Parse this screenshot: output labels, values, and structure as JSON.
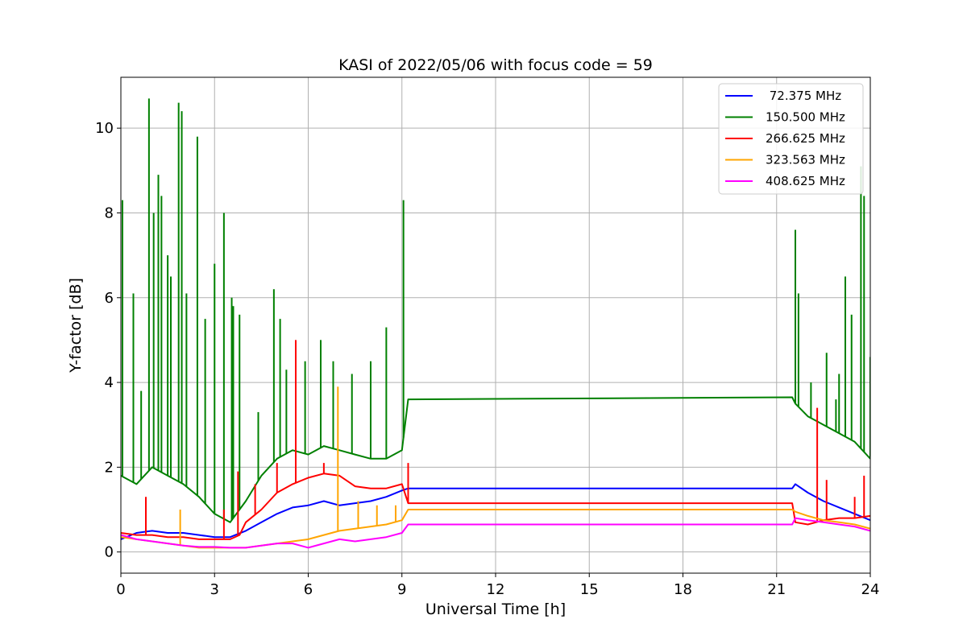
{
  "chart_data": {
    "type": "line",
    "title": "KASI of 2022/05/06 with focus code = 59",
    "xlabel": "Universal Time [h]",
    "ylabel": "Y-factor [dB]",
    "xlim": [
      0,
      24
    ],
    "ylim": [
      -0.5,
      11.2
    ],
    "xticks": [
      0,
      3,
      6,
      9,
      12,
      15,
      18,
      21,
      24
    ],
    "yticks": [
      0,
      2,
      4,
      6,
      8,
      10
    ],
    "grid": true,
    "legend_position": "top-right",
    "series": [
      {
        "name": " 72.375 MHz",
        "color": "#0000ff",
        "x": [
          0,
          0.5,
          1,
          1.5,
          2,
          2.5,
          3,
          3.5,
          4,
          4.5,
          5,
          5.5,
          6,
          6.5,
          7,
          7.5,
          8,
          8.5,
          9,
          9.2,
          21.5,
          21.6,
          22,
          22.5,
          23,
          23.5,
          24
        ],
        "y": [
          0.3,
          0.45,
          0.5,
          0.45,
          0.45,
          0.4,
          0.35,
          0.35,
          0.5,
          0.7,
          0.9,
          1.05,
          1.1,
          1.2,
          1.1,
          1.15,
          1.2,
          1.3,
          1.45,
          1.5,
          1.5,
          1.6,
          1.4,
          1.2,
          1.05,
          0.9,
          0.75
        ],
        "spikes": []
      },
      {
        "name": "150.500 MHz",
        "color": "#008000",
        "x": [
          0,
          0.5,
          1,
          1.5,
          2,
          2.5,
          3,
          3.5,
          4,
          4.5,
          5,
          5.5,
          6,
          6.5,
          7,
          7.5,
          8,
          8.5,
          9,
          9.2,
          21.5,
          21.6,
          22,
          22.5,
          23,
          23.5,
          24
        ],
        "y": [
          1.8,
          1.6,
          2.0,
          1.8,
          1.6,
          1.3,
          0.9,
          0.7,
          1.2,
          1.8,
          2.2,
          2.4,
          2.3,
          2.5,
          2.4,
          2.3,
          2.2,
          2.2,
          2.4,
          3.6,
          3.65,
          3.5,
          3.2,
          3.0,
          2.8,
          2.6,
          2.2
        ],
        "spikes": [
          {
            "x": 0.05,
            "y": 8.3
          },
          {
            "x": 0.4,
            "y": 6.1
          },
          {
            "x": 0.65,
            "y": 3.8
          },
          {
            "x": 0.9,
            "y": 10.7
          },
          {
            "x": 1.05,
            "y": 8.0
          },
          {
            "x": 1.2,
            "y": 8.9
          },
          {
            "x": 1.3,
            "y": 8.4
          },
          {
            "x": 1.5,
            "y": 7.0
          },
          {
            "x": 1.6,
            "y": 6.5
          },
          {
            "x": 1.85,
            "y": 10.6
          },
          {
            "x": 1.95,
            "y": 10.4
          },
          {
            "x": 2.1,
            "y": 6.1
          },
          {
            "x": 2.45,
            "y": 9.8
          },
          {
            "x": 2.7,
            "y": 5.5
          },
          {
            "x": 3.0,
            "y": 6.8
          },
          {
            "x": 3.3,
            "y": 8.0
          },
          {
            "x": 3.55,
            "y": 6.0
          },
          {
            "x": 3.6,
            "y": 5.8
          },
          {
            "x": 3.8,
            "y": 5.6
          },
          {
            "x": 4.4,
            "y": 3.3
          },
          {
            "x": 4.9,
            "y": 6.2
          },
          {
            "x": 5.1,
            "y": 5.5
          },
          {
            "x": 5.3,
            "y": 4.3
          },
          {
            "x": 5.6,
            "y": 4.5
          },
          {
            "x": 5.9,
            "y": 4.5
          },
          {
            "x": 6.4,
            "y": 5.0
          },
          {
            "x": 6.8,
            "y": 4.5
          },
          {
            "x": 7.4,
            "y": 4.2
          },
          {
            "x": 8.0,
            "y": 4.5
          },
          {
            "x": 8.5,
            "y": 5.3
          },
          {
            "x": 9.05,
            "y": 8.3
          },
          {
            "x": 21.6,
            "y": 7.6
          },
          {
            "x": 21.7,
            "y": 6.1
          },
          {
            "x": 22.1,
            "y": 4.0
          },
          {
            "x": 22.6,
            "y": 4.7
          },
          {
            "x": 22.9,
            "y": 3.6
          },
          {
            "x": 23.0,
            "y": 4.2
          },
          {
            "x": 23.2,
            "y": 6.5
          },
          {
            "x": 23.4,
            "y": 5.6
          },
          {
            "x": 23.7,
            "y": 9.1
          },
          {
            "x": 23.8,
            "y": 8.4
          },
          {
            "x": 24.0,
            "y": 4.6
          }
        ]
      },
      {
        "name": "266.625 MHz",
        "color": "#ff0000",
        "x": [
          0,
          0.5,
          1,
          1.5,
          2,
          2.5,
          3,
          3.5,
          3.8,
          4,
          4.5,
          5,
          5.5,
          6,
          6.5,
          7,
          7.5,
          8,
          8.5,
          9,
          9.2,
          21.5,
          21.6,
          22,
          22.5,
          23,
          23.5,
          24
        ],
        "y": [
          0.45,
          0.4,
          0.4,
          0.35,
          0.35,
          0.3,
          0.3,
          0.3,
          0.4,
          0.7,
          1.0,
          1.4,
          1.6,
          1.75,
          1.85,
          1.8,
          1.55,
          1.5,
          1.5,
          1.6,
          1.15,
          1.15,
          0.7,
          0.65,
          0.75,
          0.8,
          0.8,
          0.85
        ],
        "spikes": [
          {
            "x": 0.8,
            "y": 1.3
          },
          {
            "x": 3.3,
            "y": 1.0
          },
          {
            "x": 3.75,
            "y": 1.9
          },
          {
            "x": 4.3,
            "y": 1.6
          },
          {
            "x": 5.0,
            "y": 2.1
          },
          {
            "x": 5.6,
            "y": 5.0
          },
          {
            "x": 6.5,
            "y": 2.1
          },
          {
            "x": 9.2,
            "y": 2.1
          },
          {
            "x": 22.3,
            "y": 3.4
          },
          {
            "x": 22.6,
            "y": 1.7
          },
          {
            "x": 23.5,
            "y": 1.3
          },
          {
            "x": 23.8,
            "y": 1.8
          }
        ]
      },
      {
        "name": "323.563 MHz",
        "color": "#ffa500",
        "x": [
          0,
          0.5,
          1,
          1.5,
          2,
          2.5,
          3,
          3.5,
          4,
          4.5,
          5,
          5.5,
          6,
          6.5,
          7,
          7.5,
          8,
          8.5,
          9,
          9.2,
          21.5,
          21.6,
          22,
          22.5,
          23,
          23.5,
          24
        ],
        "y": [
          0.35,
          0.3,
          0.25,
          0.2,
          0.15,
          0.1,
          0.1,
          0.1,
          0.1,
          0.15,
          0.2,
          0.25,
          0.3,
          0.4,
          0.5,
          0.55,
          0.6,
          0.65,
          0.75,
          1.0,
          1.0,
          0.95,
          0.85,
          0.75,
          0.7,
          0.65,
          0.55
        ],
        "spikes": [
          {
            "x": 1.9,
            "y": 1.0
          },
          {
            "x": 6.95,
            "y": 3.9
          },
          {
            "x": 7.6,
            "y": 1.2
          },
          {
            "x": 8.2,
            "y": 1.1
          },
          {
            "x": 8.8,
            "y": 1.1
          }
        ]
      },
      {
        "name": "408.625 MHz",
        "color": "#ff00ff",
        "x": [
          0,
          0.5,
          1,
          1.5,
          2,
          2.5,
          3,
          3.5,
          4,
          4.5,
          5,
          5.5,
          6,
          6.5,
          7,
          7.5,
          8,
          8.5,
          9,
          9.2,
          21.5,
          21.6,
          22,
          22.5,
          23,
          23.5,
          24
        ],
        "y": [
          0.4,
          0.3,
          0.25,
          0.2,
          0.15,
          0.12,
          0.12,
          0.1,
          0.1,
          0.15,
          0.2,
          0.2,
          0.1,
          0.2,
          0.3,
          0.25,
          0.3,
          0.35,
          0.45,
          0.65,
          0.65,
          0.8,
          0.75,
          0.7,
          0.65,
          0.6,
          0.5
        ],
        "spikes": []
      }
    ]
  }
}
